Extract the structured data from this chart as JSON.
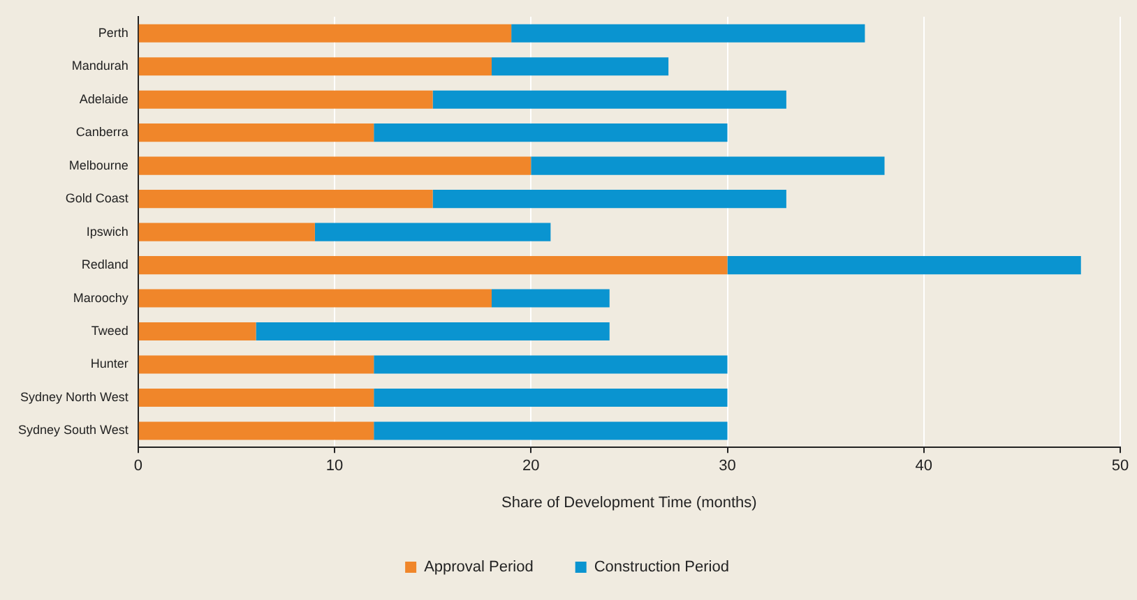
{
  "chart_data": {
    "type": "bar",
    "orientation": "horizontal",
    "stacked": true,
    "xlabel": "Share of Development Time (months)",
    "categories": [
      "Perth",
      "Mandurah",
      "Adelaide",
      "Canberra",
      "Melbourne",
      "Gold Coast",
      "Ipswich",
      "Redland",
      "Maroochy",
      "Tweed",
      "Hunter",
      "Sydney North West",
      "Sydney South West"
    ],
    "series": [
      {
        "name": "Approval Period",
        "color": "#f0862a",
        "values": [
          19,
          18,
          15,
          12,
          20,
          15,
          9,
          30,
          18,
          6,
          12,
          12,
          12
        ]
      },
      {
        "name": "Construction Period",
        "color": "#0a94d0",
        "values": [
          18,
          9,
          18,
          18,
          18,
          18,
          12,
          18,
          6,
          18,
          18,
          18,
          18
        ]
      }
    ],
    "xlim": [
      0,
      50
    ],
    "xticks": [
      0,
      10,
      20,
      30,
      40,
      50
    ],
    "grid": "x",
    "legend": "bottom"
  }
}
